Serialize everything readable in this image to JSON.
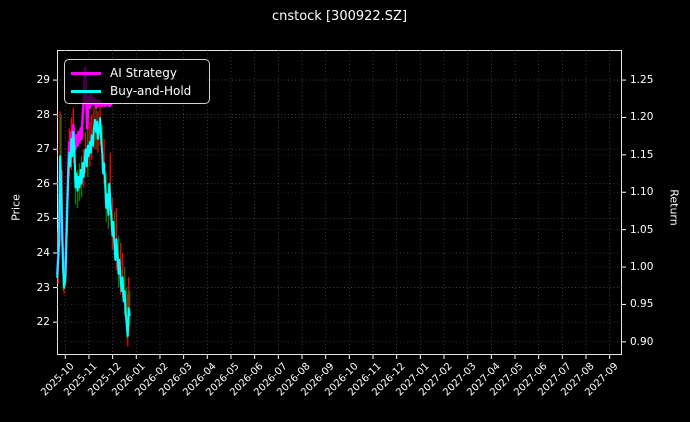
{
  "window": {
    "title": "cnstock [300922.SZ]"
  },
  "legend": {
    "items": [
      {
        "label": "AI Strategy",
        "color": "#ff00ff"
      },
      {
        "label": "Buy-and-Hold",
        "color": "#00ffff"
      }
    ]
  },
  "colors": {
    "background": "#000000",
    "text": "#ffffff",
    "grid": "#595959",
    "spine": "#e6e6e6",
    "ai_strategy": "#ff00ff",
    "buy_and_hold": "#00ffff",
    "up_wick": "#ff0000",
    "down_wick": "#008000"
  },
  "chart_data": {
    "type": "line",
    "title": "cnstock [300922.SZ]",
    "left_axis": {
      "label": "Price",
      "ticks": [
        22,
        23,
        24,
        25,
        26,
        27,
        28,
        29
      ],
      "lim": [
        21.05,
        29.87
      ]
    },
    "right_axis": {
      "label": "Return",
      "ticks": [
        "0.90",
        "0.95",
        "1.00",
        "1.05",
        "1.10",
        "1.15",
        "1.20",
        "1.25"
      ],
      "tick_values": [
        0.9,
        0.95,
        1.0,
        1.05,
        1.1,
        1.15,
        1.2,
        1.25
      ],
      "lim": [
        0.8824,
        1.2902
      ]
    },
    "x_axis": {
      "tick_labels": [
        "2025-10",
        "2025-11",
        "2025-12",
        "2026-01",
        "2026-02",
        "2026-03",
        "2026-04",
        "2026-05",
        "2026-06",
        "2026-07",
        "2026-08",
        "2026-09",
        "2026-10",
        "2026-11",
        "2026-12",
        "2027-01",
        "2027-02",
        "2027-03",
        "2027-04",
        "2027-05",
        "2027-06",
        "2027-07",
        "2027-08",
        "2027-09"
      ],
      "rotation": 45,
      "x_units": "months_from_2025-10_tick",
      "xlim": [
        -0.35,
        23.52
      ]
    },
    "grid": {
      "on": true,
      "style": "dotted"
    },
    "legend_position": "upper left",
    "series": [
      {
        "name": "AI Strategy",
        "color": "#ff00ff",
        "width": 2.5,
        "axis": "left_price_units",
        "points": [
          [
            -0.34,
            23.4
          ],
          [
            -0.3,
            23.9
          ],
          [
            -0.26,
            24.4
          ],
          [
            -0.22,
            26.7
          ],
          [
            -0.18,
            26.0
          ],
          [
            -0.13,
            24.5
          ],
          [
            -0.09,
            23.6
          ],
          [
            -0.05,
            23.2
          ],
          [
            0.0,
            23.5
          ],
          [
            0.04,
            24.3
          ],
          [
            0.08,
            25.4
          ],
          [
            0.13,
            26.6
          ],
          [
            0.17,
            27.2
          ],
          [
            0.21,
            26.9
          ],
          [
            0.26,
            27.5
          ],
          [
            0.3,
            27.2
          ],
          [
            0.34,
            27.7
          ],
          [
            0.39,
            27.3
          ],
          [
            0.43,
            27.0
          ],
          [
            0.47,
            27.4
          ],
          [
            0.52,
            27.1
          ],
          [
            0.56,
            27.5
          ],
          [
            0.6,
            27.2
          ],
          [
            0.65,
            27.6
          ],
          [
            0.69,
            27.3
          ],
          [
            0.73,
            27.9
          ],
          [
            0.78,
            28.4
          ],
          [
            0.82,
            29.0
          ],
          [
            0.84,
            29.35
          ],
          [
            0.86,
            28.9
          ],
          [
            0.89,
            28.3
          ],
          [
            0.91,
            27.9
          ],
          [
            0.93,
            27.6
          ],
          [
            0.95,
            28.0
          ],
          [
            0.99,
            28.5
          ],
          [
            1.04,
            28.2
          ],
          [
            1.08,
            28.6
          ],
          [
            1.12,
            28.3
          ],
          [
            1.17,
            28.5
          ],
          [
            1.21,
            28.3
          ],
          [
            1.25,
            28.45
          ],
          [
            1.3,
            28.2
          ],
          [
            1.34,
            28.4
          ],
          [
            1.38,
            28.25
          ],
          [
            1.43,
            28.4
          ],
          [
            1.47,
            28.3
          ],
          [
            1.51,
            28.35
          ],
          [
            1.56,
            28.25
          ],
          [
            1.6,
            28.3
          ],
          [
            1.69,
            28.25
          ],
          [
            1.77,
            28.3
          ],
          [
            1.86,
            28.25
          ],
          [
            1.95,
            28.3
          ]
        ]
      },
      {
        "name": "Buy-and-Hold",
        "color": "#00ffff",
        "width": 2,
        "axis": "left_price_units",
        "points": [
          [
            -0.34,
            23.3
          ],
          [
            -0.3,
            23.8
          ],
          [
            -0.26,
            24.3
          ],
          [
            -0.22,
            26.8
          ],
          [
            -0.18,
            26.2
          ],
          [
            -0.13,
            24.6
          ],
          [
            -0.09,
            23.5
          ],
          [
            -0.05,
            23.0
          ],
          [
            0.0,
            23.2
          ],
          [
            0.04,
            24.1
          ],
          [
            0.08,
            25.2
          ],
          [
            0.13,
            26.4
          ],
          [
            0.17,
            26.9
          ],
          [
            0.21,
            26.5
          ],
          [
            0.26,
            27.3
          ],
          [
            0.3,
            26.8
          ],
          [
            0.34,
            27.5
          ],
          [
            0.39,
            27.0
          ],
          [
            0.43,
            25.9
          ],
          [
            0.47,
            26.3
          ],
          [
            0.52,
            25.8
          ],
          [
            0.56,
            26.2
          ],
          [
            0.6,
            25.9
          ],
          [
            0.65,
            26.4
          ],
          [
            0.69,
            26.0
          ],
          [
            0.73,
            26.6
          ],
          [
            0.78,
            26.2
          ],
          [
            0.82,
            26.7
          ],
          [
            0.86,
            27.0
          ],
          [
            0.91,
            26.5
          ],
          [
            0.95,
            27.1
          ],
          [
            0.99,
            26.8
          ],
          [
            1.04,
            27.2
          ],
          [
            1.08,
            26.9
          ],
          [
            1.12,
            27.4
          ],
          [
            1.17,
            27.1
          ],
          [
            1.21,
            27.6
          ],
          [
            1.25,
            27.85
          ],
          [
            1.3,
            27.5
          ],
          [
            1.34,
            27.8
          ],
          [
            1.38,
            27.3
          ],
          [
            1.43,
            27.6
          ],
          [
            1.47,
            27.9
          ],
          [
            1.51,
            27.4
          ],
          [
            1.56,
            26.9
          ],
          [
            1.6,
            26.3
          ],
          [
            1.64,
            26.6
          ],
          [
            1.69,
            25.9
          ],
          [
            1.73,
            25.3
          ],
          [
            1.77,
            25.7
          ],
          [
            1.82,
            25.1
          ],
          [
            1.86,
            26.0
          ],
          [
            1.9,
            25.5
          ],
          [
            1.95,
            25.0
          ],
          [
            1.99,
            24.5
          ],
          [
            2.03,
            24.9
          ],
          [
            2.08,
            24.2
          ],
          [
            2.12,
            23.8
          ],
          [
            2.16,
            24.4
          ],
          [
            2.21,
            23.9
          ],
          [
            2.25,
            23.4
          ],
          [
            2.29,
            23.8
          ],
          [
            2.34,
            23.2
          ],
          [
            2.38,
            22.9
          ],
          [
            2.42,
            23.3
          ],
          [
            2.47,
            22.6
          ],
          [
            2.51,
            22.9
          ],
          [
            2.55,
            22.3
          ],
          [
            2.6,
            21.9
          ],
          [
            2.64,
            21.6
          ],
          [
            2.68,
            22.4
          ],
          [
            2.72,
            22.2
          ]
        ]
      }
    ],
    "wicks": [
      {
        "x": -0.3,
        "lo": 23.1,
        "hi": 24.6,
        "c": "#ff0000"
      },
      {
        "x": -0.26,
        "lo": 23.9,
        "hi": 25.2,
        "c": "#008000"
      },
      {
        "x": -0.22,
        "lo": 24.2,
        "hi": 28.1,
        "c": "#ff0000"
      },
      {
        "x": -0.18,
        "lo": 25.8,
        "hi": 28.0,
        "c": "#008000"
      },
      {
        "x": -0.13,
        "lo": 24.0,
        "hi": 26.4,
        "c": "#ff0000"
      },
      {
        "x": -0.09,
        "lo": 22.9,
        "hi": 24.1,
        "c": "#008000"
      },
      {
        "x": -0.05,
        "lo": 22.8,
        "hi": 23.6,
        "c": "#ff0000"
      },
      {
        "x": 0.04,
        "lo": 23.3,
        "hi": 24.6,
        "c": "#ff0000"
      },
      {
        "x": 0.08,
        "lo": 24.6,
        "hi": 26.0,
        "c": "#ff0000"
      },
      {
        "x": 0.13,
        "lo": 25.7,
        "hi": 27.1,
        "c": "#ff0000"
      },
      {
        "x": 0.17,
        "lo": 26.2,
        "hi": 27.6,
        "c": "#ff0000"
      },
      {
        "x": 0.26,
        "lo": 26.4,
        "hi": 27.9,
        "c": "#ff0000"
      },
      {
        "x": 0.34,
        "lo": 26.6,
        "hi": 28.2,
        "c": "#ff0000"
      },
      {
        "x": 0.39,
        "lo": 26.1,
        "hi": 27.4,
        "c": "#008000"
      },
      {
        "x": 0.43,
        "lo": 25.4,
        "hi": 26.5,
        "c": "#008000"
      },
      {
        "x": 0.52,
        "lo": 25.3,
        "hi": 26.4,
        "c": "#008000"
      },
      {
        "x": 0.6,
        "lo": 25.5,
        "hi": 26.6,
        "c": "#008000"
      },
      {
        "x": 0.69,
        "lo": 25.6,
        "hi": 26.8,
        "c": "#008000"
      },
      {
        "x": 0.78,
        "lo": 25.9,
        "hi": 27.0,
        "c": "#ff0000"
      },
      {
        "x": 0.86,
        "lo": 26.3,
        "hi": 27.5,
        "c": "#ff0000"
      },
      {
        "x": 0.95,
        "lo": 26.2,
        "hi": 27.6,
        "c": "#008000"
      },
      {
        "x": 1.04,
        "lo": 26.5,
        "hi": 27.8,
        "c": "#ff0000"
      },
      {
        "x": 1.12,
        "lo": 26.7,
        "hi": 28.0,
        "c": "#ff0000"
      },
      {
        "x": 1.21,
        "lo": 27.0,
        "hi": 28.2,
        "c": "#ff0000"
      },
      {
        "x": 1.3,
        "lo": 27.0,
        "hi": 28.3,
        "c": "#008000"
      },
      {
        "x": 1.38,
        "lo": 26.9,
        "hi": 28.1,
        "c": "#ff0000"
      },
      {
        "x": 1.47,
        "lo": 27.1,
        "hi": 28.45,
        "c": "#ff0000"
      },
      {
        "x": 1.56,
        "lo": 26.4,
        "hi": 27.7,
        "c": "#008000"
      },
      {
        "x": 1.64,
        "lo": 26.0,
        "hi": 27.3,
        "c": "#ff0000"
      },
      {
        "x": 1.73,
        "lo": 24.9,
        "hi": 26.3,
        "c": "#008000"
      },
      {
        "x": 1.82,
        "lo": 24.7,
        "hi": 26.0,
        "c": "#008000"
      },
      {
        "x": 1.9,
        "lo": 25.1,
        "hi": 26.9,
        "c": "#ff0000"
      },
      {
        "x": 1.99,
        "lo": 24.1,
        "hi": 25.6,
        "c": "#ff0000"
      },
      {
        "x": 2.08,
        "lo": 23.8,
        "hi": 25.2,
        "c": "#008000"
      },
      {
        "x": 2.16,
        "lo": 23.5,
        "hi": 25.3,
        "c": "#ff0000"
      },
      {
        "x": 2.25,
        "lo": 23.0,
        "hi": 24.5,
        "c": "#008000"
      },
      {
        "x": 2.34,
        "lo": 22.8,
        "hi": 24.3,
        "c": "#ff0000"
      },
      {
        "x": 2.42,
        "lo": 22.7,
        "hi": 24.0,
        "c": "#ff0000"
      },
      {
        "x": 2.51,
        "lo": 22.2,
        "hi": 23.6,
        "c": "#008000"
      },
      {
        "x": 2.6,
        "lo": 21.5,
        "hi": 23.0,
        "c": "#008000"
      },
      {
        "x": 2.64,
        "lo": 21.3,
        "hi": 22.8,
        "c": "#ff0000"
      },
      {
        "x": 2.68,
        "lo": 21.8,
        "hi": 23.3,
        "c": "#ff0000"
      },
      {
        "x": 2.72,
        "lo": 21.9,
        "hi": 22.9,
        "c": "#008000"
      }
    ]
  }
}
